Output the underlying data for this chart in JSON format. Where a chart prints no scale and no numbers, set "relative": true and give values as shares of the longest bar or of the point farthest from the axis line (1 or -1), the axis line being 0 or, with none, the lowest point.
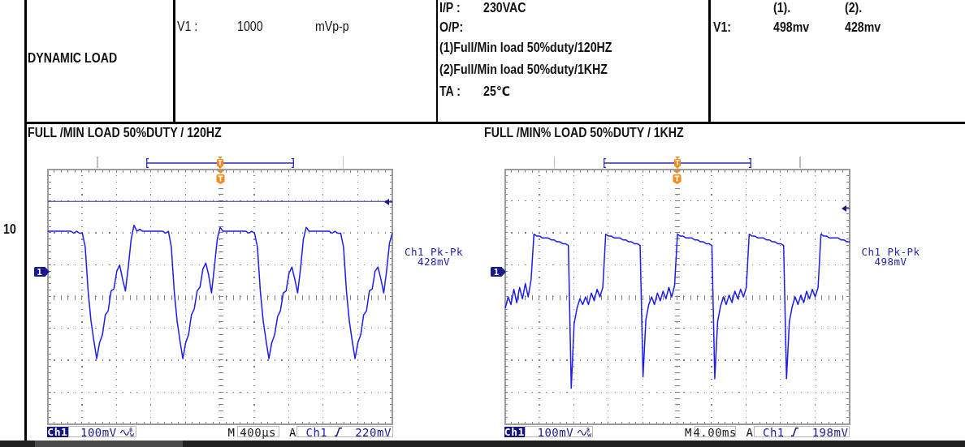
{
  "chart_data": [
    {
      "type": "other",
      "annotations": [
        "10",
        "DYNAMIC LOAD",
        "V1 :",
        "1000",
        "mVp-p",
        "I/P :",
        "230VAC",
        "O/P:",
        "(1)Full/Min load 50%duty/120HZ",
        "(2)Full/Min load 50%duty/1KHZ",
        "TA :",
        "25℃",
        "V1:",
        "(1).",
        "(2).",
        "498mv",
        "428mv"
      ]
    },
    {
      "type": "line",
      "title": "FULL /MIN LOAD 50%DUTY / 120HZ",
      "relative": true,
      "tick_labels": false,
      "color": "#1c1cf0",
      "categories": [
        null,
        null,
        null,
        null,
        null,
        null,
        null,
        null,
        null,
        null,
        null,
        null,
        null,
        null,
        null,
        null,
        null,
        null,
        null,
        null,
        null,
        null,
        null,
        null,
        null,
        null,
        null,
        null,
        null,
        null,
        null,
        null,
        null,
        null,
        null,
        null,
        null,
        null,
        null,
        null,
        null,
        null,
        null,
        null,
        null,
        null,
        null,
        null,
        null,
        null,
        null,
        null,
        null,
        null,
        null,
        null,
        null,
        null,
        null,
        null,
        null,
        null,
        null,
        null,
        null,
        null,
        null,
        null,
        null,
        null,
        null,
        null,
        null,
        null,
        null,
        null,
        null,
        null,
        null,
        null,
        null,
        null,
        null,
        null,
        null,
        null,
        null,
        null,
        null,
        null,
        null,
        null,
        null,
        null,
        null,
        null,
        null,
        null,
        null,
        null,
        null,
        null,
        null,
        null,
        null,
        null,
        null,
        null,
        null,
        null,
        null,
        null,
        null,
        null,
        null,
        null,
        null,
        null,
        null,
        null,
        null
      ],
      "values": [
        0.97,
        0.97,
        0.97,
        0.97,
        0.97,
        0.97,
        0.97,
        0.97,
        0.97,
        0.96,
        0.97,
        0.96,
        0.96,
        0.89,
        0.67,
        0.52,
        0.42,
        0.33,
        0.41,
        0.45,
        0.55,
        0.57,
        0.67,
        0.68,
        0.77,
        0.8,
        0.73,
        0.67,
        0.79,
        0.93,
        1.0,
        0.97,
        0.98,
        0.97,
        0.97,
        0.97,
        0.97,
        0.97,
        0.97,
        0.97,
        0.97,
        0.96,
        0.97,
        0.89,
        0.67,
        0.52,
        0.42,
        0.33,
        0.41,
        0.45,
        0.55,
        0.58,
        0.67,
        0.69,
        0.78,
        0.81,
        0.75,
        0.66,
        0.79,
        0.93,
        0.99,
        0.97,
        0.97,
        0.97,
        0.97,
        0.97,
        0.97,
        0.97,
        0.97,
        0.97,
        0.96,
        0.97,
        0.96,
        0.89,
        0.67,
        0.52,
        0.42,
        0.33,
        0.41,
        0.45,
        0.54,
        0.57,
        0.66,
        0.67,
        0.76,
        0.79,
        0.73,
        0.66,
        0.78,
        0.93,
        0.99,
        0.97,
        0.97,
        0.97,
        0.97,
        0.97,
        0.97,
        0.97,
        0.97,
        0.96,
        0.97,
        0.96,
        0.96,
        0.89,
        0.67,
        0.52,
        0.42,
        0.33,
        0.41,
        0.45,
        0.55,
        0.57,
        0.67,
        0.68,
        0.77,
        0.79,
        0.73,
        0.66,
        0.77,
        0.91,
        0.96
      ],
      "ref_lines": [
        {
          "axis": "y",
          "value": 1.12,
          "color": "#2b2bb8"
        }
      ],
      "annotations": [
        "Ch1 Pk-Pk",
        "428mV",
        "Ch1",
        "100mV",
        "M",
        "400µs",
        "A",
        "Ch1",
        "220mV",
        "1"
      ]
    },
    {
      "type": "line",
      "title": "FULL /MIN% LOAD 50%DUTY / 1KHZ",
      "relative": true,
      "tick_labels": false,
      "color": "#1c1cf0",
      "categories": [
        null,
        null,
        null,
        null,
        null,
        null,
        null,
        null,
        null,
        null,
        null,
        null,
        null,
        null,
        null,
        null,
        null,
        null,
        null,
        null,
        null,
        null,
        null,
        null,
        null,
        null,
        null,
        null,
        null,
        null,
        null,
        null,
        null,
        null,
        null,
        null,
        null,
        null,
        null,
        null,
        null,
        null,
        null,
        null,
        null,
        null,
        null,
        null,
        null,
        null,
        null,
        null,
        null,
        null,
        null,
        null,
        null,
        null,
        null,
        null,
        null,
        null,
        null,
        null,
        null,
        null,
        null,
        null,
        null,
        null,
        null,
        null,
        null,
        null,
        null,
        null,
        null,
        null,
        null,
        null,
        null,
        null,
        null,
        null,
        null,
        null,
        null,
        null,
        null,
        null,
        null,
        null,
        null,
        null,
        null,
        null,
        null,
        null,
        null,
        null,
        null,
        null,
        null,
        null,
        null,
        null,
        null,
        null,
        null,
        null,
        null,
        null,
        null,
        null,
        null,
        null,
        null,
        null,
        null,
        null,
        null
      ],
      "values": [
        0.61,
        0.67,
        0.63,
        0.71,
        0.64,
        0.72,
        0.66,
        0.74,
        0.67,
        0.76,
        1.0,
        0.99,
        0.99,
        0.98,
        0.98,
        0.98,
        0.97,
        0.97,
        0.96,
        0.96,
        0.95,
        0.95,
        0.94,
        0.19,
        0.53,
        0.61,
        0.66,
        0.63,
        0.67,
        0.63,
        0.69,
        0.65,
        0.71,
        0.67,
        0.72,
        1.0,
        0.99,
        0.99,
        0.98,
        0.98,
        0.98,
        0.97,
        0.97,
        0.96,
        0.96,
        0.95,
        0.95,
        0.94,
        0.25,
        0.55,
        0.63,
        0.67,
        0.63,
        0.69,
        0.65,
        0.7,
        0.66,
        0.72,
        0.67,
        0.73,
        1.0,
        0.99,
        0.99,
        0.98,
        0.98,
        0.98,
        0.97,
        0.97,
        0.96,
        0.96,
        0.95,
        0.95,
        0.94,
        0.24,
        0.54,
        0.62,
        0.67,
        0.63,
        0.68,
        0.64,
        0.7,
        0.66,
        0.71,
        0.67,
        0.72,
        1.0,
        0.99,
        0.99,
        0.98,
        0.98,
        0.98,
        0.97,
        0.97,
        0.96,
        0.96,
        0.95,
        0.95,
        0.94,
        0.24,
        0.54,
        0.62,
        0.67,
        0.63,
        0.68,
        0.64,
        0.7,
        0.66,
        0.71,
        0.67,
        0.72,
        1.0,
        0.99,
        0.99,
        0.98,
        0.98,
        0.98,
        0.98,
        0.97,
        0.97,
        0.96,
        0.96
      ],
      "annotations": [
        "Ch1 Pk-Pk",
        "498mV",
        "Ch1",
        "100mV",
        "M",
        "4.00ms",
        "A",
        "Ch1",
        "198mV",
        "1"
      ]
    }
  ]
}
